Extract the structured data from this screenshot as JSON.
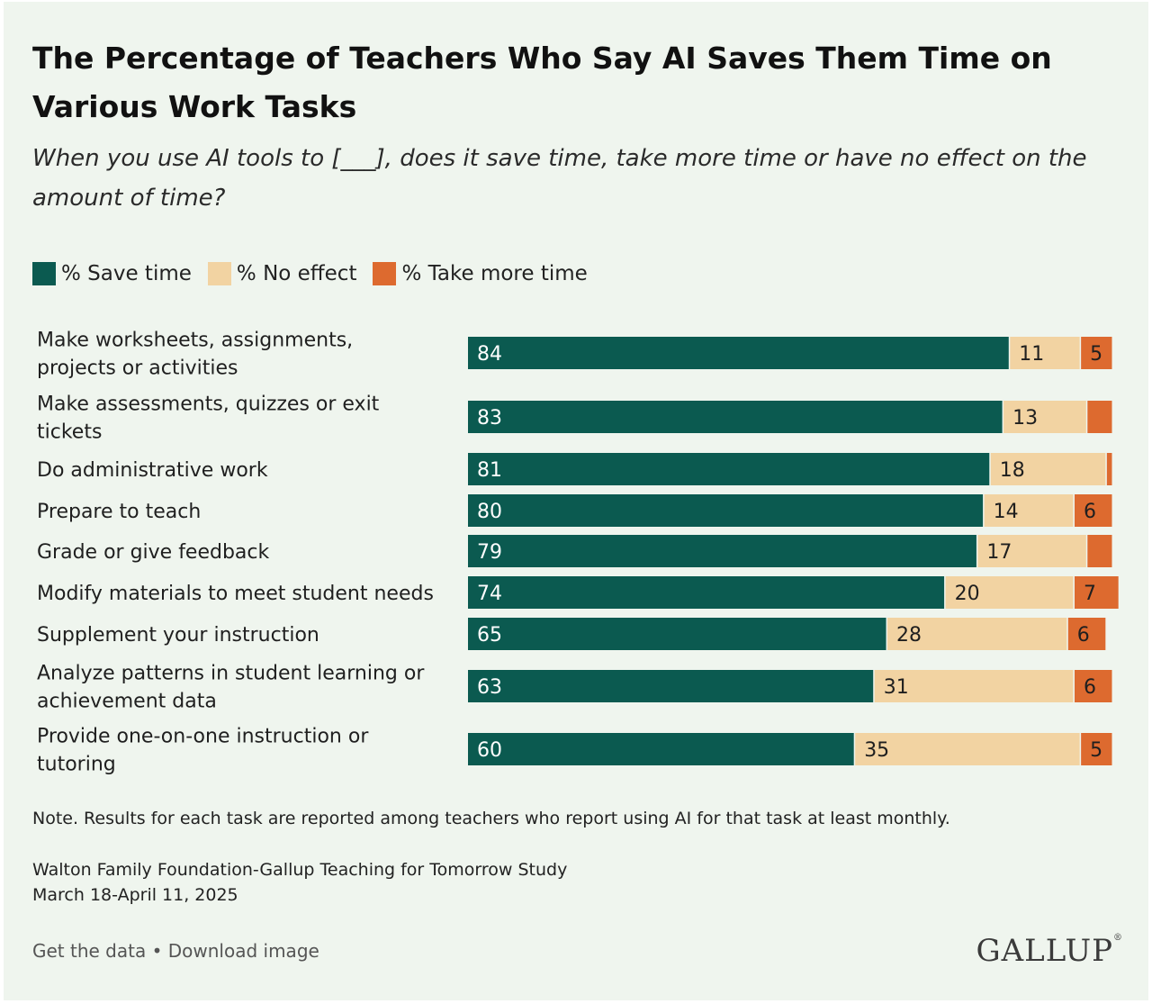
{
  "title": "The Percentage of Teachers Who Say AI Saves Them Time on Various Work Tasks",
  "subtitle": "When you use AI tools to [___], does it save time, take more time or have no effect on the amount of time?",
  "legend": [
    {
      "label": "% Save time",
      "color": "#0b5a50"
    },
    {
      "label": "% No effect",
      "color": "#f2d3a2"
    },
    {
      "label": "% Take more time",
      "color": "#dd6a2f"
    }
  ],
  "chart_data": {
    "type": "bar",
    "orientation": "horizontal",
    "stacked": true,
    "xlim": [
      0,
      100
    ],
    "categories": [
      "Make worksheets, assignments, projects or activities",
      "Make assessments, quizzes or exit tickets",
      "Do administrative work",
      "Prepare to teach",
      "Grade or give feedback",
      "Modify materials to meet student needs",
      "Supplement your instruction",
      "Analyze patterns in student learning or achievement data",
      "Provide one-on-one instruction or tutoring"
    ],
    "series": [
      {
        "name": "% Save time",
        "color": "#0b5a50",
        "values": [
          84,
          83,
          81,
          80,
          79,
          74,
          65,
          63,
          60
        ]
      },
      {
        "name": "% No effect",
        "color": "#f2d3a2",
        "values": [
          11,
          13,
          18,
          14,
          17,
          20,
          28,
          31,
          35
        ]
      },
      {
        "name": "% Take more time",
        "color": "#dd6a2f",
        "values": [
          5,
          4,
          1,
          6,
          4,
          7,
          6,
          6,
          5
        ]
      }
    ],
    "data_labels": {
      "% Save time": [
        "84",
        "83",
        "81",
        "80",
        "79",
        "74",
        "65",
        "63",
        "60"
      ],
      "% No effect": [
        "11",
        "13",
        "18",
        "14",
        "17",
        "20",
        "28",
        "31",
        "35"
      ],
      "% Take more time": [
        "5",
        "",
        "",
        "6",
        "",
        "7",
        "6",
        "6",
        "5"
      ]
    },
    "category_lines": [
      [
        "Make worksheets, assignments,",
        "projects or activities"
      ],
      [
        "Make assessments, quizzes or exit",
        "tickets"
      ],
      [
        "Do administrative work"
      ],
      [
        "Prepare to teach"
      ],
      [
        "Grade or give feedback"
      ],
      [
        "Modify materials to meet student needs"
      ],
      [
        "Supplement your instruction"
      ],
      [
        "Analyze patterns in student learning or",
        "achievement data"
      ],
      [
        "Provide one-on-one instruction or",
        "tutoring"
      ]
    ]
  },
  "note": "Note. Results for each task are reported among teachers who report using AI for that task at least monthly.",
  "source_line1": "Walton Family Foundation-Gallup Teaching for Tomorrow Study",
  "source_line2": "March 18-April 11, 2025",
  "footer": {
    "get_data": "Get the data",
    "separator": " • ",
    "download": "Download image"
  },
  "logo_text": "GALLUP",
  "logo_mark": "®"
}
